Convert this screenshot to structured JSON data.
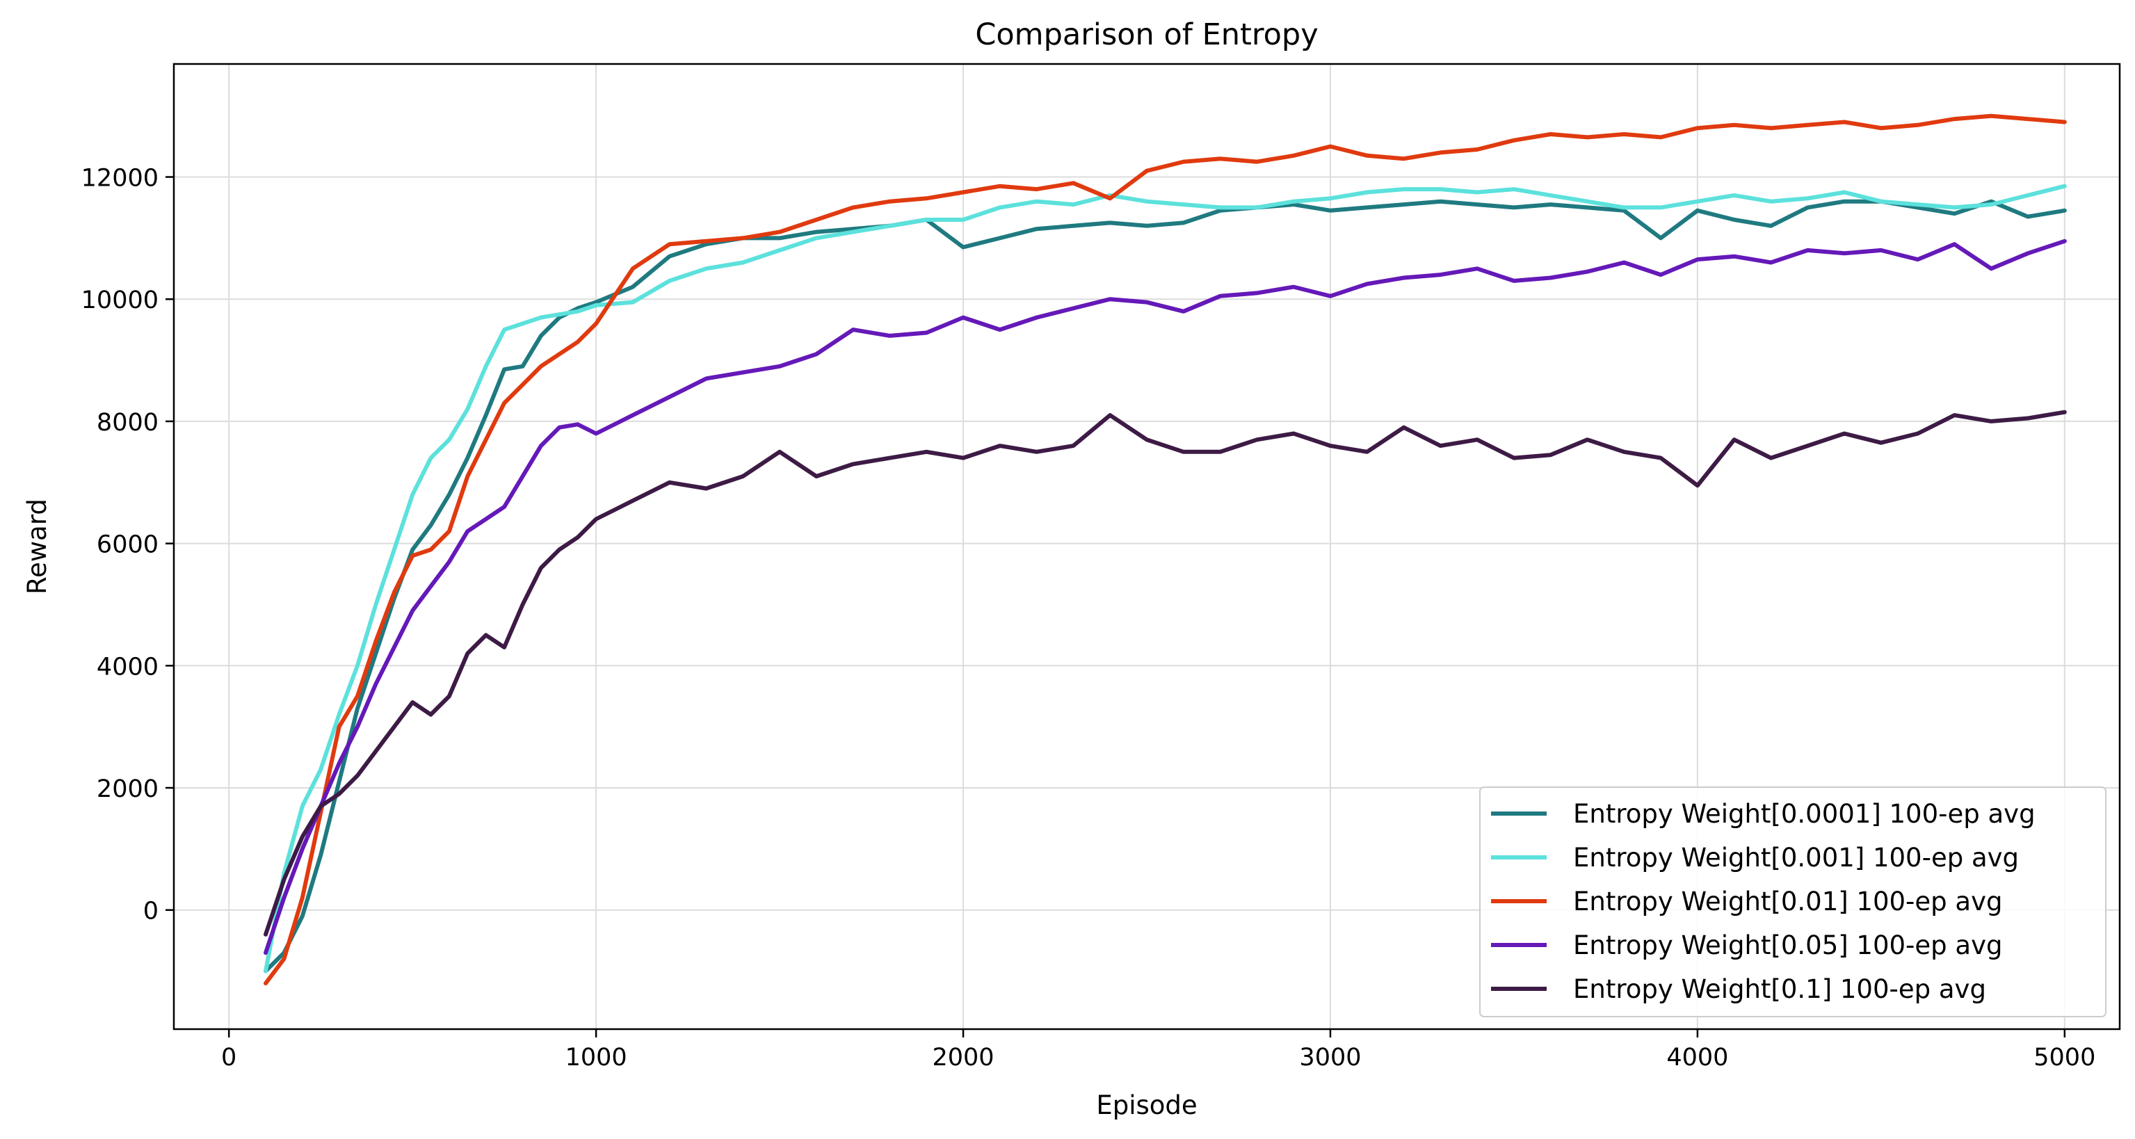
{
  "chart_data": {
    "type": "line",
    "title": "Comparison of Entropy",
    "xlabel": "Episode",
    "ylabel": "Reward",
    "xlim": [
      -150,
      5150
    ],
    "ylim": [
      -1950,
      13850
    ],
    "xticks": [
      0,
      1000,
      2000,
      3000,
      4000,
      5000
    ],
    "yticks": [
      0,
      2000,
      4000,
      6000,
      8000,
      10000,
      12000
    ],
    "grid": true,
    "legend_position": "lower-right",
    "series": [
      {
        "name": "Entropy Weight[0.0001] 100-ep avg",
        "color": "#1f7a80",
        "x": [
          100,
          150,
          200,
          250,
          300,
          350,
          400,
          450,
          500,
          550,
          600,
          650,
          700,
          750,
          800,
          850,
          900,
          950,
          1000,
          1100,
          1200,
          1300,
          1400,
          1500,
          1600,
          1700,
          1800,
          1900,
          2000,
          2100,
          2200,
          2300,
          2400,
          2500,
          2600,
          2700,
          2800,
          2900,
          3000,
          3100,
          3200,
          3300,
          3400,
          3500,
          3600,
          3700,
          3800,
          3900,
          4000,
          4100,
          4200,
          4300,
          4400,
          4500,
          4600,
          4700,
          4800,
          4900,
          5000
        ],
        "y": [
          -1000,
          -700,
          -100,
          900,
          2100,
          3300,
          4200,
          5100,
          5900,
          6300,
          6800,
          7400,
          8100,
          8850,
          8900,
          9400,
          9700,
          9850,
          9950,
          10200,
          10700,
          10900,
          11000,
          11000,
          11100,
          11150,
          11200,
          11300,
          10850,
          11000,
          11150,
          11200,
          11250,
          11200,
          11250,
          11450,
          11500,
          11550,
          11450,
          11500,
          11550,
          11600,
          11550,
          11500,
          11550,
          11500,
          11450,
          11000,
          11450,
          11300,
          11200,
          11500,
          11600,
          11600,
          11500,
          11400,
          11600,
          11350,
          11450
        ]
      },
      {
        "name": "Entropy Weight[0.001] 100-ep avg",
        "color": "#5ce1dc",
        "x": [
          100,
          150,
          200,
          250,
          300,
          350,
          400,
          450,
          500,
          550,
          600,
          650,
          700,
          750,
          800,
          850,
          900,
          950,
          1000,
          1100,
          1200,
          1300,
          1400,
          1500,
          1600,
          1700,
          1800,
          1900,
          2000,
          2100,
          2200,
          2300,
          2400,
          2500,
          2600,
          2700,
          2800,
          2900,
          3000,
          3100,
          3200,
          3300,
          3400,
          3500,
          3600,
          3700,
          3800,
          3900,
          4000,
          4100,
          4200,
          4300,
          4400,
          4500,
          4600,
          4700,
          4800,
          4900,
          5000
        ],
        "y": [
          -1000,
          600,
          1700,
          2300,
          3200,
          4000,
          5000,
          5900,
          6800,
          7400,
          7700,
          8200,
          8900,
          9500,
          9600,
          9700,
          9750,
          9800,
          9900,
          9950,
          10300,
          10500,
          10600,
          10800,
          11000,
          11100,
          11200,
          11300,
          11300,
          11500,
          11600,
          11550,
          11700,
          11600,
          11550,
          11500,
          11500,
          11600,
          11650,
          11750,
          11800,
          11800,
          11750,
          11800,
          11700,
          11600,
          11500,
          11500,
          11600,
          11700,
          11600,
          11650,
          11750,
          11600,
          11550,
          11500,
          11550,
          11700,
          11850
        ]
      },
      {
        "name": "Entropy Weight[0.01] 100-ep avg",
        "color": "#e03a0f",
        "x": [
          100,
          150,
          200,
          250,
          300,
          350,
          400,
          450,
          500,
          550,
          600,
          650,
          700,
          750,
          800,
          850,
          900,
          950,
          1000,
          1100,
          1200,
          1300,
          1400,
          1500,
          1600,
          1700,
          1800,
          1900,
          2000,
          2100,
          2200,
          2300,
          2400,
          2500,
          2600,
          2700,
          2800,
          2900,
          3000,
          3100,
          3200,
          3300,
          3400,
          3500,
          3600,
          3700,
          3800,
          3900,
          4000,
          4100,
          4200,
          4300,
          4400,
          4500,
          4600,
          4700,
          4800,
          4900,
          5000
        ],
        "y": [
          -1200,
          -800,
          200,
          1600,
          3000,
          3500,
          4400,
          5200,
          5800,
          5900,
          6200,
          7100,
          7700,
          8300,
          8600,
          8900,
          9100,
          9300,
          9600,
          10500,
          10900,
          10950,
          11000,
          11100,
          11300,
          11500,
          11600,
          11650,
          11750,
          11850,
          11800,
          11900,
          11650,
          12100,
          12250,
          12300,
          12250,
          12350,
          12500,
          12350,
          12300,
          12400,
          12450,
          12600,
          12700,
          12650,
          12700,
          12650,
          12800,
          12850,
          12800,
          12850,
          12900,
          12800,
          12850,
          12950,
          13000,
          12950,
          12900
        ]
      },
      {
        "name": "Entropy Weight[0.05] 100-ep avg",
        "color": "#6419b8",
        "x": [
          100,
          150,
          200,
          250,
          300,
          350,
          400,
          450,
          500,
          550,
          600,
          650,
          700,
          750,
          800,
          850,
          900,
          950,
          1000,
          1100,
          1200,
          1300,
          1400,
          1500,
          1600,
          1700,
          1800,
          1900,
          2000,
          2100,
          2200,
          2300,
          2400,
          2500,
          2600,
          2700,
          2800,
          2900,
          3000,
          3100,
          3200,
          3300,
          3400,
          3500,
          3600,
          3700,
          3800,
          3900,
          4000,
          4100,
          4200,
          4300,
          4400,
          4500,
          4600,
          4700,
          4800,
          4900,
          5000
        ],
        "y": [
          -700,
          200,
          1000,
          1700,
          2400,
          3000,
          3700,
          4300,
          4900,
          5300,
          5700,
          6200,
          6400,
          6600,
          7100,
          7600,
          7900,
          7950,
          7800,
          8100,
          8400,
          8700,
          8800,
          8900,
          9100,
          9500,
          9400,
          9450,
          9700,
          9500,
          9700,
          9850,
          10000,
          9950,
          9800,
          10050,
          10100,
          10200,
          10050,
          10250,
          10350,
          10400,
          10500,
          10300,
          10350,
          10450,
          10600,
          10400,
          10650,
          10700,
          10600,
          10800,
          10750,
          10800,
          10650,
          10900,
          10500,
          10750,
          10950
        ]
      },
      {
        "name": "Entropy Weight[0.1] 100-ep avg",
        "color": "#3d1b45",
        "x": [
          100,
          150,
          200,
          250,
          300,
          350,
          400,
          450,
          500,
          550,
          600,
          650,
          700,
          750,
          800,
          850,
          900,
          950,
          1000,
          1100,
          1200,
          1300,
          1400,
          1500,
          1600,
          1700,
          1800,
          1900,
          2000,
          2100,
          2200,
          2300,
          2400,
          2500,
          2600,
          2700,
          2800,
          2900,
          3000,
          3100,
          3200,
          3300,
          3400,
          3500,
          3600,
          3700,
          3800,
          3900,
          4000,
          4100,
          4200,
          4300,
          4400,
          4500,
          4600,
          4700,
          4800,
          4900,
          5000
        ],
        "y": [
          -400,
          500,
          1200,
          1700,
          1900,
          2200,
          2600,
          3000,
          3400,
          3200,
          3500,
          4200,
          4500,
          4300,
          5000,
          5600,
          5900,
          6100,
          6400,
          6700,
          7000,
          6900,
          7100,
          7500,
          7100,
          7300,
          7400,
          7500,
          7400,
          7600,
          7500,
          7600,
          8100,
          7700,
          7500,
          7500,
          7700,
          7800,
          7600,
          7500,
          7900,
          7600,
          7700,
          7400,
          7450,
          7700,
          7500,
          7400,
          6950,
          7700,
          7400,
          7600,
          7800,
          7650,
          7800,
          8100,
          8000,
          8050,
          8150
        ]
      }
    ]
  }
}
